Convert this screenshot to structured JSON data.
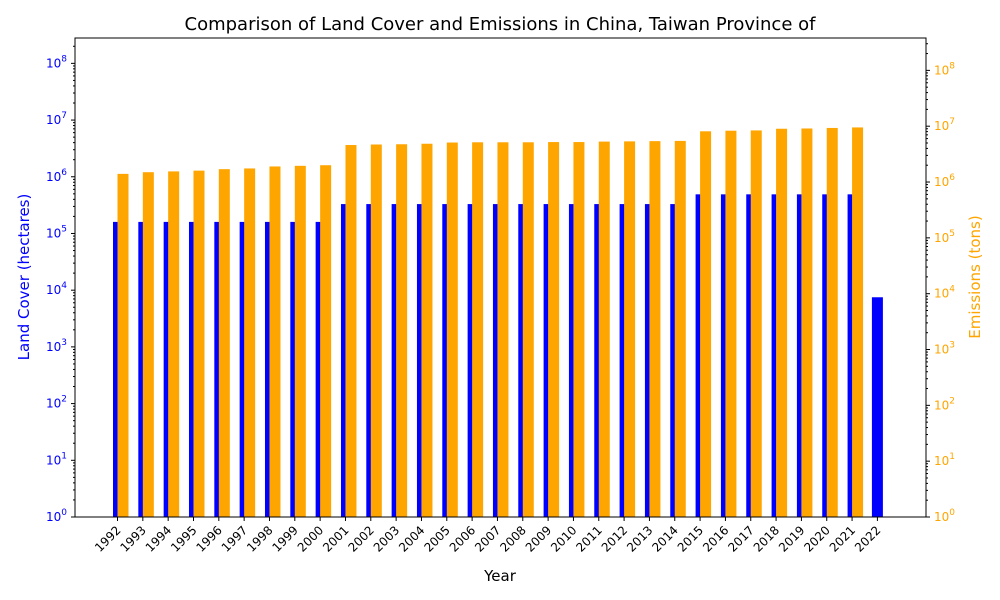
{
  "chart_data": {
    "type": "bar",
    "title": "Comparison of Land Cover and Emissions in China, Taiwan Province of",
    "xlabel": "Year",
    "ylabel_left": "Land Cover (hectares)",
    "ylabel_right": "Emissions (tons)",
    "y_scale": "log",
    "ylim_left": [
      1,
      280000000
    ],
    "ylim_right": [
      1,
      380000000
    ],
    "left_ticks": [
      "10^0",
      "10^1",
      "10^2",
      "10^3",
      "10^4",
      "10^5",
      "10^6",
      "10^7",
      "10^8"
    ],
    "right_ticks": [
      "10^0",
      "10^1",
      "10^2",
      "10^3",
      "10^4",
      "10^5",
      "10^6",
      "10^7",
      "10^8"
    ],
    "colors": {
      "land": "#0000ff",
      "emissions": "#ffa500",
      "left_axis": "#0000ff",
      "right_axis": "#ffa500"
    },
    "grid": false,
    "categories": [
      "1992",
      "1993",
      "1994",
      "1995",
      "1996",
      "1997",
      "1998",
      "1999",
      "2000",
      "2001",
      "2002",
      "2003",
      "2004",
      "2005",
      "2006",
      "2007",
      "2008",
      "2009",
      "2010",
      "2011",
      "2012",
      "2013",
      "2014",
      "2015",
      "2016",
      "2017",
      "2018",
      "2019",
      "2020",
      "2021",
      "2022"
    ],
    "series": [
      {
        "key": "land",
        "axis": "left",
        "values": [
          160000,
          160000,
          160000,
          160000,
          160000,
          160000,
          160000,
          160000,
          160000,
          330000,
          330000,
          330000,
          330000,
          330000,
          330000,
          330000,
          330000,
          330000,
          330000,
          330000,
          330000,
          330000,
          330000,
          490000,
          490000,
          490000,
          490000,
          490000,
          490000,
          490000,
          7500
        ]
      },
      {
        "key": "emissions",
        "axis": "right",
        "values": [
          1400000,
          1500000,
          1550000,
          1600000,
          1700000,
          1750000,
          1900000,
          1950000,
          2000000,
          4600000,
          4700000,
          4750000,
          4850000,
          5100000,
          5150000,
          5150000,
          5150000,
          5200000,
          5200000,
          5300000,
          5350000,
          5400000,
          5450000,
          8100000,
          8300000,
          8400000,
          9000000,
          9100000,
          9300000,
          9500000,
          null
        ]
      }
    ]
  }
}
